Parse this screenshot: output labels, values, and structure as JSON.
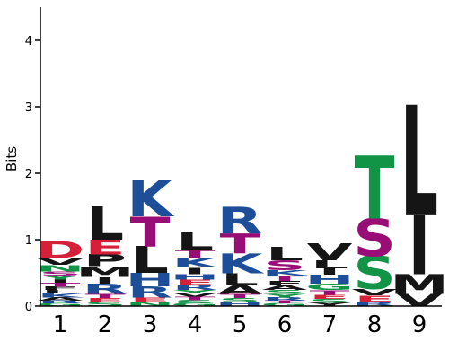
{
  "chart_data": {
    "type": "sequence-logo",
    "ylabel": "Bits",
    "ylim": [
      0,
      4.5
    ],
    "yticks": [
      0,
      1,
      2,
      3,
      4
    ],
    "positions": [
      "1",
      "2",
      "3",
      "4",
      "5",
      "6",
      "7",
      "8",
      "9"
    ],
    "colors": {
      "red": "#d6203a",
      "black": "#151515",
      "blue": "#1f4e99",
      "green": "#129447",
      "purple": "#990d76"
    },
    "stacks": [
      [
        {
          "letter": "G",
          "bits": 0.04,
          "color": "green"
        },
        {
          "letter": "R",
          "bits": 0.04,
          "color": "blue"
        },
        {
          "letter": "A",
          "bits": 0.05,
          "color": "black"
        },
        {
          "letter": "K",
          "bits": 0.06,
          "color": "blue"
        },
        {
          "letter": "L",
          "bits": 0.05,
          "color": "black"
        },
        {
          "letter": "F",
          "bits": 0.05,
          "color": "black"
        },
        {
          "letter": "T",
          "bits": 0.06,
          "color": "purple"
        },
        {
          "letter": "I",
          "bits": 0.05,
          "color": "black"
        },
        {
          "letter": "Y",
          "bits": 0.06,
          "color": "green"
        },
        {
          "letter": "S",
          "bits": 0.06,
          "color": "purple"
        },
        {
          "letter": "N",
          "bits": 0.1,
          "color": "green"
        },
        {
          "letter": "V",
          "bits": 0.1,
          "color": "black"
        },
        {
          "letter": "D",
          "bits": 0.25,
          "color": "red"
        }
      ],
      [
        {
          "letter": "S",
          "bits": 0.06,
          "color": "green"
        },
        {
          "letter": "E",
          "bits": 0.06,
          "color": "red"
        },
        {
          "letter": "T",
          "bits": 0.06,
          "color": "purple"
        },
        {
          "letter": "R",
          "bits": 0.16,
          "color": "blue"
        },
        {
          "letter": "I",
          "bits": 0.1,
          "color": "black"
        },
        {
          "letter": "M",
          "bits": 0.16,
          "color": "black"
        },
        {
          "letter": "P",
          "bits": 0.18,
          "color": "black"
        },
        {
          "letter": "E",
          "bits": 0.22,
          "color": "red"
        },
        {
          "letter": "L",
          "bits": 0.5,
          "color": "black"
        }
      ],
      [
        {
          "letter": "N",
          "bits": 0.06,
          "color": "green"
        },
        {
          "letter": "E",
          "bits": 0.07,
          "color": "red"
        },
        {
          "letter": "R",
          "bits": 0.17,
          "color": "blue"
        },
        {
          "letter": "H",
          "bits": 0.2,
          "color": "blue"
        },
        {
          "letter": "L",
          "bits": 0.4,
          "color": "black"
        },
        {
          "letter": "T",
          "bits": 0.45,
          "color": "purple"
        },
        {
          "letter": "K",
          "bits": 0.55,
          "color": "blue"
        }
      ],
      [
        {
          "letter": "G",
          "bits": 0.04,
          "color": "green"
        },
        {
          "letter": "S",
          "bits": 0.05,
          "color": "green"
        },
        {
          "letter": "T",
          "bits": 0.05,
          "color": "purple"
        },
        {
          "letter": "V",
          "bits": 0.05,
          "color": "black"
        },
        {
          "letter": "Y",
          "bits": 0.05,
          "color": "green"
        },
        {
          "letter": "R",
          "bits": 0.08,
          "color": "blue"
        },
        {
          "letter": "E",
          "bits": 0.08,
          "color": "red"
        },
        {
          "letter": "H",
          "bits": 0.08,
          "color": "blue"
        },
        {
          "letter": "I",
          "bits": 0.1,
          "color": "black"
        },
        {
          "letter": "K",
          "bits": 0.15,
          "color": "blue"
        },
        {
          "letter": "T",
          "bits": 0.12,
          "color": "purple"
        },
        {
          "letter": "L",
          "bits": 0.25,
          "color": "black"
        }
      ],
      [
        {
          "letter": "H",
          "bits": 0.06,
          "color": "blue"
        },
        {
          "letter": "S",
          "bits": 0.06,
          "color": "green"
        },
        {
          "letter": "T",
          "bits": 0.06,
          "color": "purple"
        },
        {
          "letter": "A",
          "bits": 0.13,
          "color": "black"
        },
        {
          "letter": "L",
          "bits": 0.18,
          "color": "black"
        },
        {
          "letter": "K",
          "bits": 0.3,
          "color": "blue"
        },
        {
          "letter": "T",
          "bits": 0.3,
          "color": "purple"
        },
        {
          "letter": "R",
          "bits": 0.4,
          "color": "blue"
        }
      ],
      [
        {
          "letter": "G",
          "bits": 0.04,
          "color": "green"
        },
        {
          "letter": "T",
          "bits": 0.04,
          "color": "purple"
        },
        {
          "letter": "R",
          "bits": 0.05,
          "color": "blue"
        },
        {
          "letter": "Y",
          "bits": 0.05,
          "color": "green"
        },
        {
          "letter": "S",
          "bits": 0.06,
          "color": "green"
        },
        {
          "letter": "A",
          "bits": 0.07,
          "color": "black"
        },
        {
          "letter": "F",
          "bits": 0.07,
          "color": "black"
        },
        {
          "letter": "T",
          "bits": 0.08,
          "color": "purple"
        },
        {
          "letter": "K",
          "bits": 0.08,
          "color": "blue"
        },
        {
          "letter": "S",
          "bits": 0.15,
          "color": "purple"
        },
        {
          "letter": "L",
          "bits": 0.2,
          "color": "black"
        }
      ],
      [
        {
          "letter": "Y",
          "bits": 0.05,
          "color": "black"
        },
        {
          "letter": "S",
          "bits": 0.06,
          "color": "green"
        },
        {
          "letter": "E",
          "bits": 0.06,
          "color": "red"
        },
        {
          "letter": "T",
          "bits": 0.07,
          "color": "purple"
        },
        {
          "letter": "G",
          "bits": 0.1,
          "color": "green"
        },
        {
          "letter": "H",
          "bits": 0.13,
          "color": "blue"
        },
        {
          "letter": "I",
          "bits": 0.1,
          "color": "black"
        },
        {
          "letter": "L",
          "bits": 0.12,
          "color": "black"
        },
        {
          "letter": "V",
          "bits": 0.25,
          "color": "black"
        }
      ],
      [
        {
          "letter": "R",
          "bits": 0.06,
          "color": "blue"
        },
        {
          "letter": "E",
          "bits": 0.1,
          "color": "red"
        },
        {
          "letter": "V",
          "bits": 0.1,
          "color": "black"
        },
        {
          "letter": "S",
          "bits": 0.5,
          "color": "green"
        },
        {
          "letter": "S",
          "bits": 0.56,
          "color": "purple"
        },
        {
          "letter": "T",
          "bits": 0.95,
          "color": "green"
        }
      ],
      [
        {
          "letter": "V",
          "bits": 0.18,
          "color": "black"
        },
        {
          "letter": "M",
          "bits": 0.3,
          "color": "black"
        },
        {
          "letter": "I",
          "bits": 0.9,
          "color": "black"
        },
        {
          "letter": "L",
          "bits": 1.65,
          "color": "black"
        }
      ]
    ]
  }
}
